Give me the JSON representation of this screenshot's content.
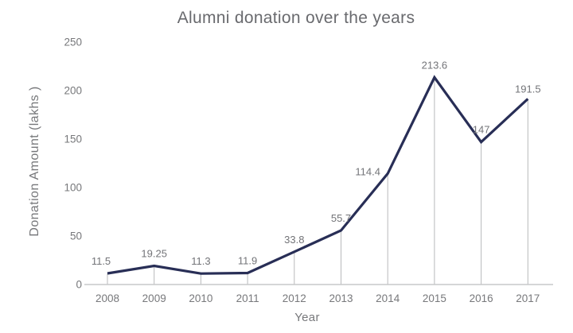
{
  "chart_data": {
    "type": "line",
    "title": "Alumni donation over the years",
    "xlabel": "Year",
    "ylabel": "Donation Amount (lakhs )",
    "categories": [
      "2008",
      "2009",
      "2010",
      "2011",
      "2012",
      "2013",
      "2014",
      "2015",
      "2016",
      "2017"
    ],
    "values": [
      11.5,
      19.25,
      11.3,
      11.9,
      33.8,
      55.7,
      114.4,
      213.6,
      147,
      191.5
    ],
    "point_labels": [
      "11.5",
      "19.25",
      "11.3",
      "11.9",
      "33.8",
      "55.7",
      "114.4",
      "213.6",
      "147",
      "191.5"
    ],
    "yticks": [
      0,
      50,
      100,
      150,
      200,
      250
    ],
    "ylim": [
      0,
      250
    ],
    "legend": "none",
    "grid": "off",
    "annotations": "value label above each point; thin gray vertical drop line from each point down to the x-axis",
    "label_offsets": {
      "0": {
        "dx": -8
      },
      "6": {
        "dx": -25,
        "dy": 13
      },
      "9": {
        "dy": 3
      }
    },
    "colors": {
      "line": "#282e56",
      "drop_line": "#b8b9bb",
      "axis_line": "#c7c8ca",
      "tick_text": "#77787b",
      "data_label_text": "#737478",
      "title_text": "#696a6e",
      "background": "#ffffff"
    }
  }
}
